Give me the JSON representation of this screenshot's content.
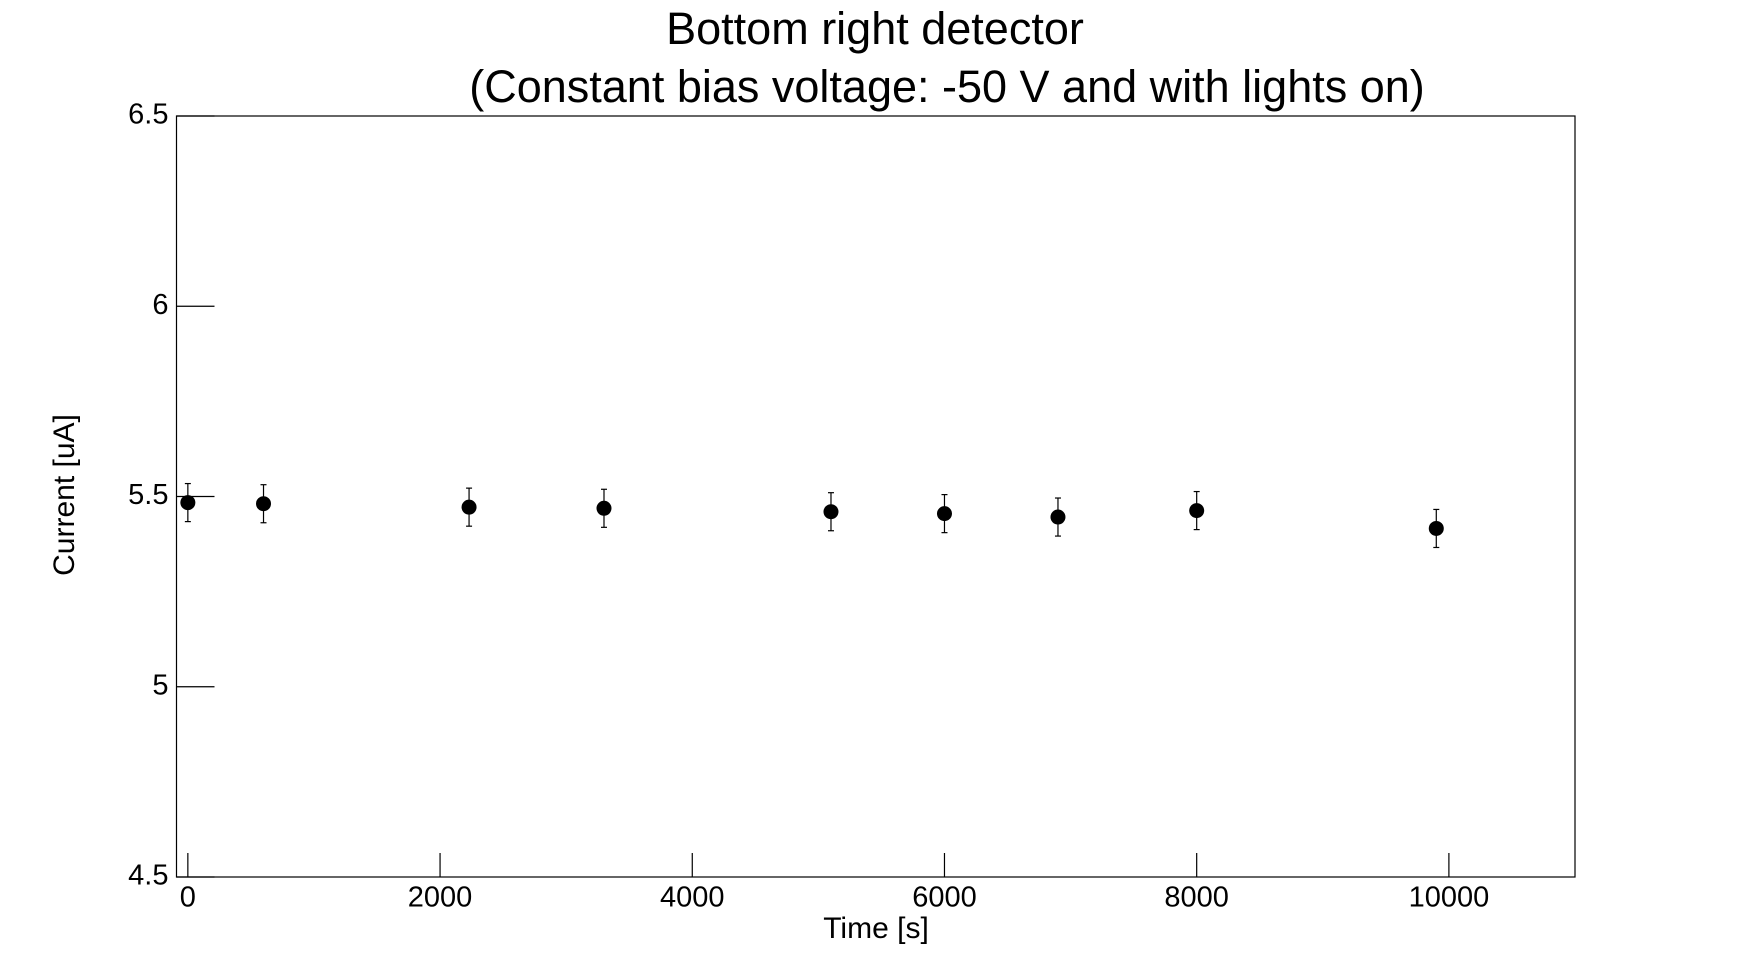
{
  "chart_data": {
    "type": "scatter",
    "title": "Bottom right detector",
    "subtitle": "(Constant bias voltage: -50 V and with lights on)",
    "x_label": "Time [s]",
    "y_label": "Current [uA]",
    "x": [
      0,
      600,
      2230,
      3300,
      5100,
      6000,
      6900,
      8000,
      9900
    ],
    "values": [
      5.484,
      5.481,
      5.472,
      5.469,
      5.46,
      5.455,
      5.446,
      5.463,
      5.416
    ],
    "errors": [
      0.05,
      0.05,
      0.05,
      0.05,
      0.05,
      0.05,
      0.05,
      0.05,
      0.05
    ],
    "color": "#000000",
    "xlim": [
      -90,
      11000
    ],
    "ylim": [
      4.5,
      6.5
    ],
    "xticks": [
      0,
      2000,
      4000,
      6000,
      8000,
      10000
    ],
    "yticks": [
      4.5,
      5,
      5.5,
      6,
      6.5
    ]
  }
}
